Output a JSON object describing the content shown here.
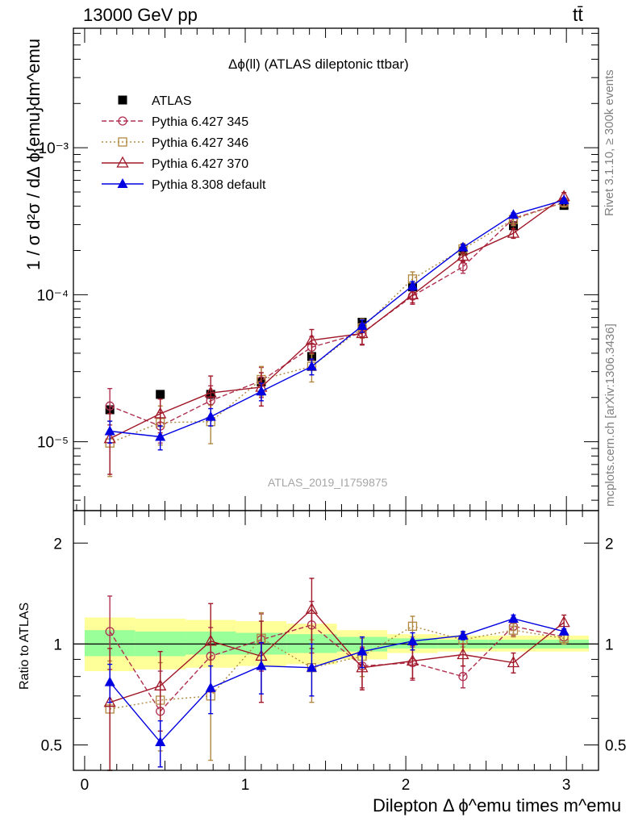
{
  "header": {
    "left": "13000 GeV pp",
    "right": "tt̄"
  },
  "side_labels": {
    "rivet": "Rivet 3.1.10, ≥ 300k events",
    "mcplots": "mcplots.cern.ch [arXiv:1306.3436]"
  },
  "chart_data": [
    {
      "type": "line",
      "title": "Δϕ(ll) (ATLAS dileptonic ttbar)",
      "ylabel": "1 / σ  d²σ / dΔ ϕ{emu}dm^emu",
      "xlabel": "Dilepton Δ ϕ^emu times m^emu",
      "watermark": "ATLAS_2019_I1759875",
      "yscale": "log",
      "xlim": [
        -0.07,
        3.2
      ],
      "ylim": [
        3.4e-06,
        0.0065
      ],
      "yticks": [
        {
          "v": 1e-05,
          "label": "10⁻⁵"
        },
        {
          "v": 0.0001,
          "label": "10⁻⁴"
        },
        {
          "v": 0.001,
          "label": "10⁻³"
        }
      ],
      "xticks": [
        0,
        1,
        2,
        3
      ],
      "legend_position": "top-left",
      "x": [
        0.157,
        0.471,
        0.785,
        1.1,
        1.414,
        1.728,
        2.042,
        2.356,
        2.67,
        2.985
      ],
      "series": [
        {
          "name": "ATLAS",
          "color": "#000000",
          "marker": "square-filled",
          "line": "none",
          "values": [
            1.65e-05,
            2.1e-05,
            2.1e-05,
            2.55e-05,
            3.8e-05,
            6.5e-05,
            0.000113,
            0.000198,
            0.000295,
            0.000405
          ]
        },
        {
          "name": "Pythia 6.427 345",
          "color": "#b03050",
          "marker": "circle-open",
          "line": "dashed",
          "values": [
            1.75e-05,
            1.28e-05,
            1.9e-05,
            2.6e-05,
            4.4e-05,
            5.5e-05,
            9.8e-05,
            0.000155,
            0.00033,
            0.000425
          ],
          "err_up": [
            5.5e-06,
            3e-06,
            5e-06,
            6e-06,
            8e-06,
            9e-06,
            1.2e-05,
            1.5e-05,
            3e-05,
            3e-05
          ],
          "err_dn": [
            4.5e-06,
            3e-06,
            5e-06,
            6e-06,
            8e-06,
            9e-06,
            1.2e-05,
            1.5e-05,
            3e-05,
            3e-05
          ]
        },
        {
          "name": "Pythia 6.427 346",
          "color": "#b08840",
          "marker": "square-open",
          "line": "dotted",
          "values": [
            9.8e-06,
            1.35e-05,
            1.37e-05,
            2.65e-05,
            3.25e-05,
            5.95e-05,
            0.000128,
            0.000205,
            0.000325,
            0.000425
          ],
          "err_up": [
            4e-06,
            4e-06,
            4e-06,
            6e-06,
            7e-06,
            9e-06,
            1.5e-05,
            1.8e-05,
            3e-05,
            3e-05
          ],
          "err_dn": [
            4e-06,
            4e-06,
            4e-06,
            6e-06,
            7e-06,
            9e-06,
            1.5e-05,
            1.8e-05,
            3e-05,
            3e-05
          ]
        },
        {
          "name": "Pythia 6.427 370",
          "color": "#a01828",
          "marker": "triangle-open",
          "line": "solid",
          "values": [
            1.05e-05,
            1.55e-05,
            2.15e-05,
            2.35e-05,
            4.9e-05,
            5.45e-05,
            0.0001,
            0.000183,
            0.000262,
            0.000465
          ],
          "err_up": [
            5e-06,
            4e-06,
            6.5e-06,
            6e-06,
            9e-06,
            9e-06,
            1.2e-05,
            1.6e-05,
            2e-05,
            3e-05
          ],
          "err_dn": [
            4.5e-06,
            4e-06,
            6.5e-06,
            6e-06,
            9e-06,
            9e-06,
            1.2e-05,
            1.6e-05,
            2e-05,
            3e-05
          ]
        },
        {
          "name": "Pythia 8.308 default",
          "color": "#0000e0",
          "marker": "triangle-filled",
          "line": "solid",
          "values": [
            1.18e-05,
            1.08e-05,
            1.48e-05,
            2.2e-05,
            3.25e-05,
            6.15e-05,
            0.000115,
            0.00021,
            0.00035,
            0.00044
          ],
          "err_up": [
            2e-06,
            2e-06,
            2e-06,
            3e-06,
            4e-06,
            6e-06,
            8e-06,
            1e-05,
            1e-05,
            1e-05
          ],
          "err_dn": [
            2e-06,
            2e-06,
            2e-06,
            3e-06,
            4e-06,
            6e-06,
            8e-06,
            1e-05,
            1e-05,
            1e-05
          ]
        }
      ]
    },
    {
      "type": "line",
      "ylabel": "Ratio to ATLAS",
      "yscale": "log",
      "ylim": [
        0.42,
        2.5
      ],
      "yticks": [
        {
          "v": 0.5,
          "label": "0.5"
        },
        {
          "v": 1,
          "label": "1"
        },
        {
          "v": 2,
          "label": "2"
        }
      ],
      "xticks": [
        {
          "v": 0,
          "label": "0"
        },
        {
          "v": 1,
          "label": "1"
        },
        {
          "v": 2,
          "label": "2"
        },
        {
          "v": 3,
          "label": "3"
        }
      ],
      "bands": {
        "bin_edges": [
          0,
          0.314,
          0.628,
          0.942,
          1.257,
          1.571,
          1.885,
          2.199,
          2.513,
          2.827,
          3.14
        ],
        "yellow_lo": [
          0.83,
          0.84,
          0.85,
          0.86,
          0.87,
          0.9,
          0.94,
          0.95,
          0.95,
          0.95
        ],
        "yellow_hi": [
          1.2,
          1.19,
          1.18,
          1.17,
          1.15,
          1.1,
          1.07,
          1.06,
          1.06,
          1.06
        ],
        "green_lo": [
          0.92,
          0.92,
          0.93,
          0.93,
          0.94,
          0.95,
          0.97,
          0.97,
          0.97,
          0.97
        ],
        "green_hi": [
          1.1,
          1.09,
          1.09,
          1.08,
          1.07,
          1.05,
          1.04,
          1.03,
          1.03,
          1.03
        ]
      },
      "series": [
        {
          "name": "Pythia 6.427 345",
          "values": [
            1.09,
            0.63,
            0.92,
            1.03,
            1.14,
            0.86,
            0.88,
            0.8,
            1.13,
            1.05
          ],
          "err_up": [
            0.3,
            0.2,
            0.2,
            0.2,
            0.2,
            0.12,
            0.1,
            0.06,
            0.07,
            0.05
          ],
          "err_dn": [
            0.25,
            0.2,
            0.2,
            0.2,
            0.2,
            0.12,
            0.1,
            0.06,
            0.07,
            0.05
          ]
        },
        {
          "name": "Pythia 6.427 346",
          "values": [
            0.64,
            0.68,
            0.7,
            1.04,
            0.85,
            0.92,
            1.13,
            1.03,
            1.1,
            1.04
          ],
          "err_up": [
            0.25,
            0.2,
            0.2,
            0.2,
            0.18,
            0.12,
            0.08,
            0.05,
            0.05,
            0.04
          ],
          "err_dn": [
            0.25,
            0.2,
            0.25,
            0.2,
            0.18,
            0.12,
            0.08,
            0.05,
            0.05,
            0.04
          ]
        },
        {
          "name": "Pythia 6.427 370",
          "values": [
            0.67,
            0.75,
            1.02,
            0.92,
            1.27,
            0.85,
            0.89,
            0.93,
            0.88,
            1.16
          ],
          "err_up": [
            0.3,
            0.2,
            0.3,
            0.25,
            0.3,
            0.12,
            0.1,
            0.07,
            0.06,
            0.06
          ],
          "err_dn": [
            0.35,
            0.2,
            0.3,
            0.25,
            0.3,
            0.12,
            0.1,
            0.07,
            0.06,
            0.06
          ]
        },
        {
          "name": "Pythia 8.308 default",
          "values": [
            0.77,
            0.51,
            0.74,
            0.86,
            0.85,
            0.95,
            1.02,
            1.06,
            1.19,
            1.09
          ],
          "err_up": [
            0.1,
            0.08,
            0.12,
            0.15,
            0.15,
            0.1,
            0.06,
            0.03,
            0.03,
            0.02
          ],
          "err_dn": [
            0.1,
            0.08,
            0.12,
            0.15,
            0.15,
            0.1,
            0.06,
            0.03,
            0.03,
            0.02
          ]
        }
      ]
    }
  ]
}
